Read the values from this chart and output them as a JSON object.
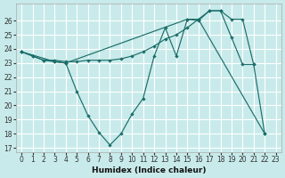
{
  "xlabel": "Humidex (Indice chaleur)",
  "xlim": [
    -0.5,
    23.5
  ],
  "ylim": [
    16.7,
    27.2
  ],
  "yticks": [
    17,
    18,
    19,
    20,
    21,
    22,
    23,
    24,
    25,
    26
  ],
  "xticks": [
    0,
    1,
    2,
    3,
    4,
    5,
    6,
    7,
    8,
    9,
    10,
    11,
    12,
    13,
    14,
    15,
    16,
    17,
    18,
    19,
    20,
    21,
    22,
    23
  ],
  "bg_color": "#c8eaea",
  "grid_color": "#ffffff",
  "lc": "#1a6e6a",
  "line1": {
    "x": [
      0,
      1,
      2,
      3,
      4,
      5,
      6,
      7,
      8,
      9,
      10,
      11,
      12,
      13,
      14,
      15,
      16,
      22
    ],
    "y": [
      23.8,
      23.5,
      23.2,
      23.1,
      23.0,
      21.0,
      19.3,
      18.1,
      17.2,
      18.0,
      19.4,
      20.5,
      23.5,
      25.5,
      23.5,
      26.1,
      26.1,
      18.0
    ]
  },
  "line2": {
    "x": [
      0,
      1,
      2,
      3,
      4,
      5,
      6,
      7,
      8,
      9,
      10,
      11,
      12,
      13,
      14,
      15,
      16,
      17,
      18,
      19,
      20,
      21
    ],
    "y": [
      23.8,
      23.5,
      23.2,
      23.2,
      23.1,
      23.1,
      23.2,
      23.2,
      23.2,
      23.3,
      23.5,
      23.8,
      24.2,
      24.7,
      25.0,
      25.5,
      26.1,
      26.7,
      26.7,
      26.1,
      26.1,
      22.9
    ]
  },
  "line3": {
    "x": [
      0,
      3,
      4,
      15,
      16,
      17,
      18,
      19,
      20,
      21,
      22
    ],
    "y": [
      23.8,
      23.1,
      23.0,
      26.1,
      26.0,
      26.7,
      26.7,
      24.8,
      22.9,
      22.9,
      18.0
    ]
  }
}
